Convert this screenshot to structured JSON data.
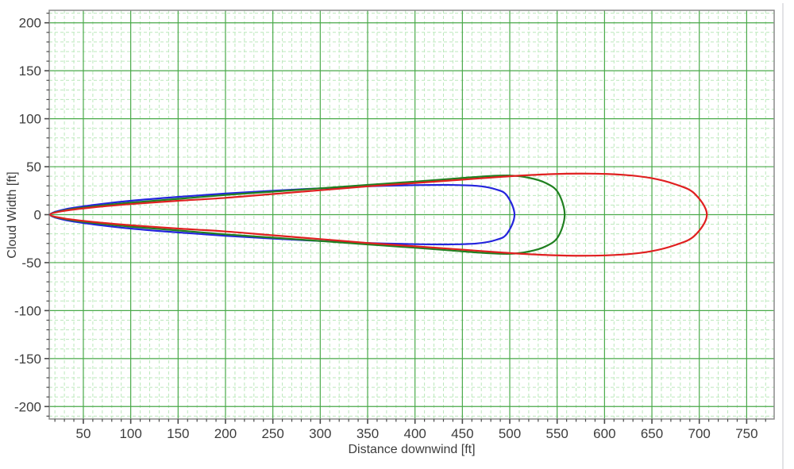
{
  "chart_data": {
    "type": "line",
    "title": "",
    "xlabel": "Distance downwind [ft]",
    "ylabel": "Cloud Width [ft]",
    "xlim": [
      14,
      779
    ],
    "ylim": [
      -213,
      213
    ],
    "major_step": 50,
    "minor_step": 10,
    "x_major_ticks": [
      50,
      100,
      150,
      200,
      250,
      300,
      350,
      400,
      450,
      500,
      550,
      600,
      650,
      700,
      750
    ],
    "y_major_ticks": [
      -200,
      -150,
      -100,
      -50,
      0,
      50,
      100,
      150,
      200
    ],
    "grid": {
      "background": "#ffffff",
      "major_color": "#49a949",
      "minor_color": "#bce8bc",
      "minor_dash": "4 3",
      "border_color": "#8a8a8a"
    },
    "axis": {
      "tick_color": "#4a4a4a",
      "label_color": "#3d3d3d"
    },
    "series": [
      {
        "name": "blue-contour",
        "color": "#2424dd",
        "downwind_extent_ft": 505,
        "max_half_width_ft": 31,
        "profile_x_halfwidth_ft": [
          [
            15,
            0
          ],
          [
            30,
            5.5
          ],
          [
            60,
            10
          ],
          [
            100,
            14.5
          ],
          [
            150,
            18.5
          ],
          [
            200,
            22
          ],
          [
            250,
            25
          ],
          [
            300,
            27.5
          ],
          [
            350,
            29.5
          ],
          [
            400,
            30.8
          ],
          [
            435,
            31
          ],
          [
            465,
            30
          ],
          [
            485,
            26.5
          ],
          [
            497,
            20
          ],
          [
            505,
            0
          ]
        ]
      },
      {
        "name": "green-contour",
        "color": "#208020",
        "downwind_extent_ft": 558,
        "max_half_width_ft": 41,
        "profile_x_halfwidth_ft": [
          [
            15,
            0
          ],
          [
            30,
            4.5
          ],
          [
            60,
            8.5
          ],
          [
            100,
            12.5
          ],
          [
            150,
            16.5
          ],
          [
            200,
            20.5
          ],
          [
            250,
            24
          ],
          [
            300,
            27.5
          ],
          [
            350,
            31
          ],
          [
            400,
            34.5
          ],
          [
            440,
            37.5
          ],
          [
            475,
            40
          ],
          [
            500,
            40.8
          ],
          [
            520,
            38.5
          ],
          [
            538,
            33
          ],
          [
            551,
            23
          ],
          [
            558,
            0
          ]
        ]
      },
      {
        "name": "red-contour",
        "color": "#e02020",
        "downwind_extent_ft": 708,
        "max_half_width_ft": 43,
        "profile_x_halfwidth_ft": [
          [
            15,
            0
          ],
          [
            30,
            4
          ],
          [
            60,
            7.5
          ],
          [
            100,
            11
          ],
          [
            150,
            14.5
          ],
          [
            200,
            17.5
          ],
          [
            250,
            21.5
          ],
          [
            300,
            25.5
          ],
          [
            350,
            29.5
          ],
          [
            400,
            33
          ],
          [
            450,
            36.5
          ],
          [
            500,
            40
          ],
          [
            545,
            42.3
          ],
          [
            585,
            42.8
          ],
          [
            620,
            41.5
          ],
          [
            650,
            38
          ],
          [
            675,
            31.5
          ],
          [
            695,
            22
          ],
          [
            708,
            0
          ]
        ]
      }
    ]
  }
}
